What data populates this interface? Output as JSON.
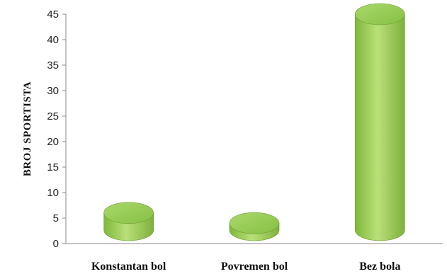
{
  "chart_data": {
    "type": "bar",
    "style": "3d-cylinder",
    "categories": [
      "Konstantan bol",
      "Povremen bol",
      "Bez bola"
    ],
    "values": [
      6,
      4,
      45
    ],
    "ylabel": "BROJ SPORTISTA",
    "xlabel": "",
    "ylim": [
      0,
      45
    ],
    "yticks": [
      "0",
      "5",
      "10",
      "15",
      "20",
      "25",
      "30",
      "35",
      "40",
      "45"
    ],
    "grid": false,
    "bar_color": "#9ccf5a"
  }
}
